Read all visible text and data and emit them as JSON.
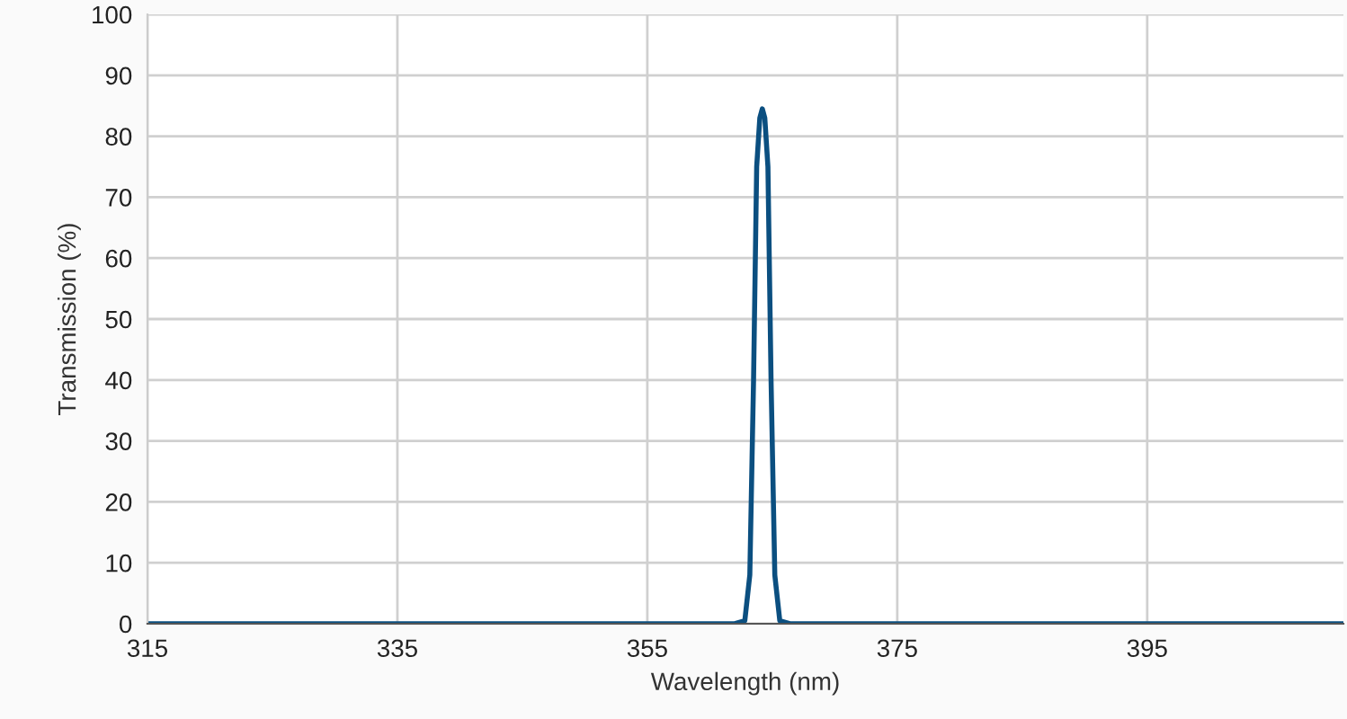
{
  "chart_data": {
    "type": "line",
    "xlabel": "Wavelength (nm)",
    "ylabel": "Transmission (%)",
    "x": [
      315,
      360,
      362.0,
      362.8,
      363.2,
      363.5,
      363.75,
      364.0,
      364.2,
      364.4,
      364.65,
      364.9,
      365.2,
      365.6,
      366.4,
      375,
      410.7
    ],
    "series": [
      {
        "color": "#0b4f80",
        "values": [
          0,
          0,
          0,
          0.5,
          8,
          40,
          75,
          83,
          84.5,
          83,
          75,
          40,
          8,
          0.5,
          0,
          0,
          0
        ]
      }
    ],
    "xlim": [
      315,
      410.7
    ],
    "xticks": [
      315,
      335,
      355,
      375,
      395
    ],
    "ylim": [
      0,
      100
    ],
    "yticks": [
      0,
      10,
      20,
      30,
      40,
      50,
      60,
      70,
      80,
      90,
      100
    ],
    "grid": true,
    "marker": "none",
    "line_style": "solid"
  }
}
